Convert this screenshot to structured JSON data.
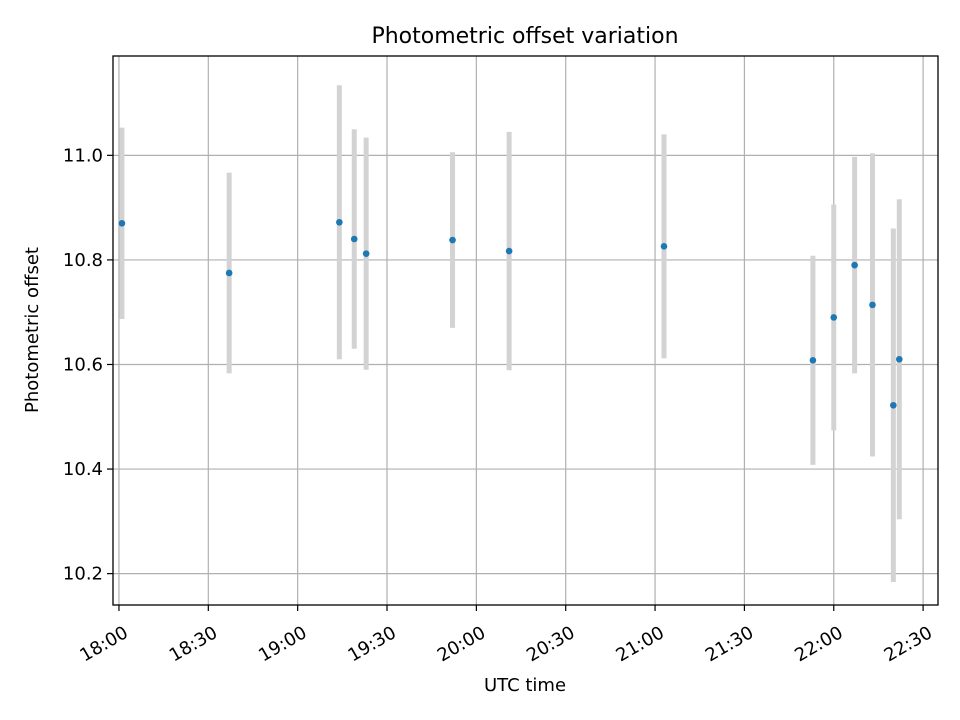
{
  "chart_data": {
    "type": "scatter",
    "title": "Photometric offset variation",
    "xlabel": "UTC time",
    "ylabel": "Photometric offset",
    "x_type": "time",
    "xlim": [
      "17:58",
      "22:35"
    ],
    "ylim": [
      10.14,
      11.19
    ],
    "x_ticks": [
      "18:00",
      "18:30",
      "19:00",
      "19:30",
      "20:00",
      "20:30",
      "21:00",
      "21:30",
      "22:00",
      "22:30"
    ],
    "y_ticks": [
      "10.2",
      "10.4",
      "10.6",
      "10.8",
      "11.0"
    ],
    "grid": true,
    "colors": {
      "marker": "#1f77b4",
      "errorbar": "#d3d3d3",
      "grid": "#b0b0b0"
    },
    "points": [
      {
        "time": "18:01",
        "y": 10.87,
        "yerr": 0.183
      },
      {
        "time": "18:37",
        "y": 10.775,
        "yerr": 0.192
      },
      {
        "time": "19:14",
        "y": 10.872,
        "yerr": 0.262
      },
      {
        "time": "19:19",
        "y": 10.84,
        "yerr": 0.21
      },
      {
        "time": "19:23",
        "y": 10.812,
        "yerr": 0.222
      },
      {
        "time": "19:52",
        "y": 10.838,
        "yerr": 0.168
      },
      {
        "time": "20:11",
        "y": 10.817,
        "yerr": 0.228
      },
      {
        "time": "21:03",
        "y": 10.826,
        "yerr": 0.214
      },
      {
        "time": "21:53",
        "y": 10.608,
        "yerr": 0.2
      },
      {
        "time": "22:00",
        "y": 10.69,
        "yerr": 0.216
      },
      {
        "time": "22:07",
        "y": 10.79,
        "yerr": 0.207
      },
      {
        "time": "22:13",
        "y": 10.714,
        "yerr": 0.29
      },
      {
        "time": "22:20",
        "y": 10.522,
        "yerr": 0.338
      },
      {
        "time": "22:22",
        "y": 10.61,
        "yerr": 0.306
      }
    ]
  }
}
